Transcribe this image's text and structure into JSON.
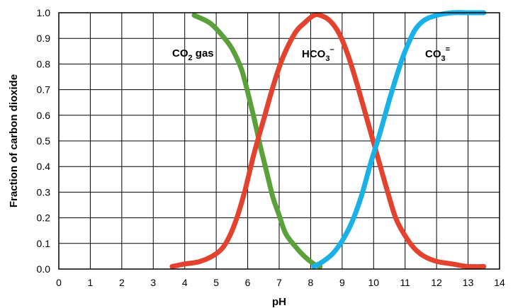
{
  "chart_data": {
    "type": "line",
    "xlabel": "pH",
    "ylabel": "Fraction of carbon dioxide",
    "xlim": [
      0,
      14
    ],
    "ylim": [
      0,
      1
    ],
    "grid": true,
    "x_ticks": [
      "0",
      "1",
      "2",
      "3",
      "4",
      "5",
      "6",
      "7",
      "8",
      "9",
      "10",
      "11",
      "12",
      "13",
      "14"
    ],
    "y_ticks": [
      "0.0",
      "0.1",
      "0.2",
      "0.3",
      "0.4",
      "0.5",
      "0.6",
      "0.7",
      "0.8",
      "0.9",
      "1.0"
    ],
    "series": [
      {
        "label_main": "CO",
        "label_sub": "2",
        "label_sup": "",
        "label_tail": " gas",
        "color": "#5aa13b",
        "x": [
          4.3,
          4.8,
          5.2,
          5.5,
          5.8,
          6.0,
          6.2,
          6.4,
          6.6,
          6.8,
          7.0,
          7.2,
          7.5,
          7.8,
          8.1,
          8.3
        ],
        "y": [
          0.99,
          0.96,
          0.91,
          0.86,
          0.78,
          0.69,
          0.59,
          0.48,
          0.38,
          0.28,
          0.21,
          0.14,
          0.09,
          0.05,
          0.02,
          0.01
        ]
      },
      {
        "label_main": "HCO",
        "label_sub": "3",
        "label_sup": "–",
        "label_tail": "",
        "color": "#e3422e",
        "x": [
          3.6,
          4.0,
          4.5,
          5.0,
          5.3,
          5.6,
          5.9,
          6.2,
          6.5,
          6.8,
          7.1,
          7.5,
          7.8,
          8.1,
          8.3,
          8.6,
          8.9,
          9.2,
          9.5,
          9.8,
          10.1,
          10.4,
          10.7,
          11.0,
          11.3,
          11.6,
          12.0,
          12.5,
          13.0,
          13.5
        ],
        "y": [
          0.01,
          0.02,
          0.03,
          0.06,
          0.1,
          0.18,
          0.3,
          0.45,
          0.58,
          0.71,
          0.82,
          0.92,
          0.96,
          0.99,
          0.99,
          0.97,
          0.92,
          0.83,
          0.71,
          0.58,
          0.45,
          0.32,
          0.2,
          0.13,
          0.08,
          0.05,
          0.03,
          0.02,
          0.01,
          0.01
        ]
      },
      {
        "label_main": "CO",
        "label_sub": "3",
        "label_sup": "=",
        "label_tail": "",
        "color": "#1ab0e8",
        "x": [
          8.1,
          8.4,
          8.7,
          9.0,
          9.3,
          9.6,
          9.9,
          10.2,
          10.5,
          10.8,
          11.0,
          11.3,
          11.6,
          12.0,
          12.5,
          13.0,
          13.5
        ],
        "y": [
          0.01,
          0.03,
          0.06,
          0.11,
          0.18,
          0.28,
          0.41,
          0.53,
          0.66,
          0.78,
          0.85,
          0.93,
          0.97,
          0.99,
          1.0,
          1.0,
          1.0
        ]
      }
    ]
  }
}
